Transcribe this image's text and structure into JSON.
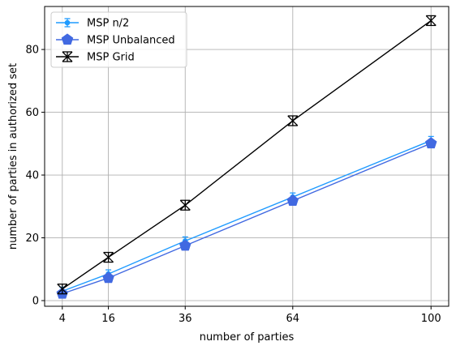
{
  "chart_data": {
    "type": "line",
    "xlabel": "number of parties",
    "ylabel": "number of parties in authorized set",
    "xlim": [
      -0.6,
      104.6
    ],
    "ylim": [
      -1.8,
      93.7
    ],
    "x_ticks": [
      4,
      16,
      36,
      64,
      100
    ],
    "y_ticks": [
      0,
      20,
      40,
      60,
      80
    ],
    "grid": true,
    "legend_position": "top-left",
    "series": [
      {
        "name": "MSP n/2",
        "color": "#1f9bff",
        "marker": "errorbar-dot",
        "x": [
          4,
          16,
          36,
          64,
          100
        ],
        "y": [
          3,
          8.5,
          19,
          33,
          51
        ]
      },
      {
        "name": "MSP Unbalanced",
        "color": "#4169e1",
        "marker": "pentagon",
        "x": [
          4,
          16,
          36,
          64,
          100
        ],
        "y": [
          2.2,
          7.2,
          17.5,
          31.8,
          50.1
        ]
      },
      {
        "name": "MSP Grid",
        "color": "#000000",
        "marker": "x-errorbar",
        "x": [
          4,
          16,
          36,
          64,
          100
        ],
        "y": [
          3.7,
          13.8,
          30.4,
          57.3,
          89.2
        ]
      }
    ]
  }
}
